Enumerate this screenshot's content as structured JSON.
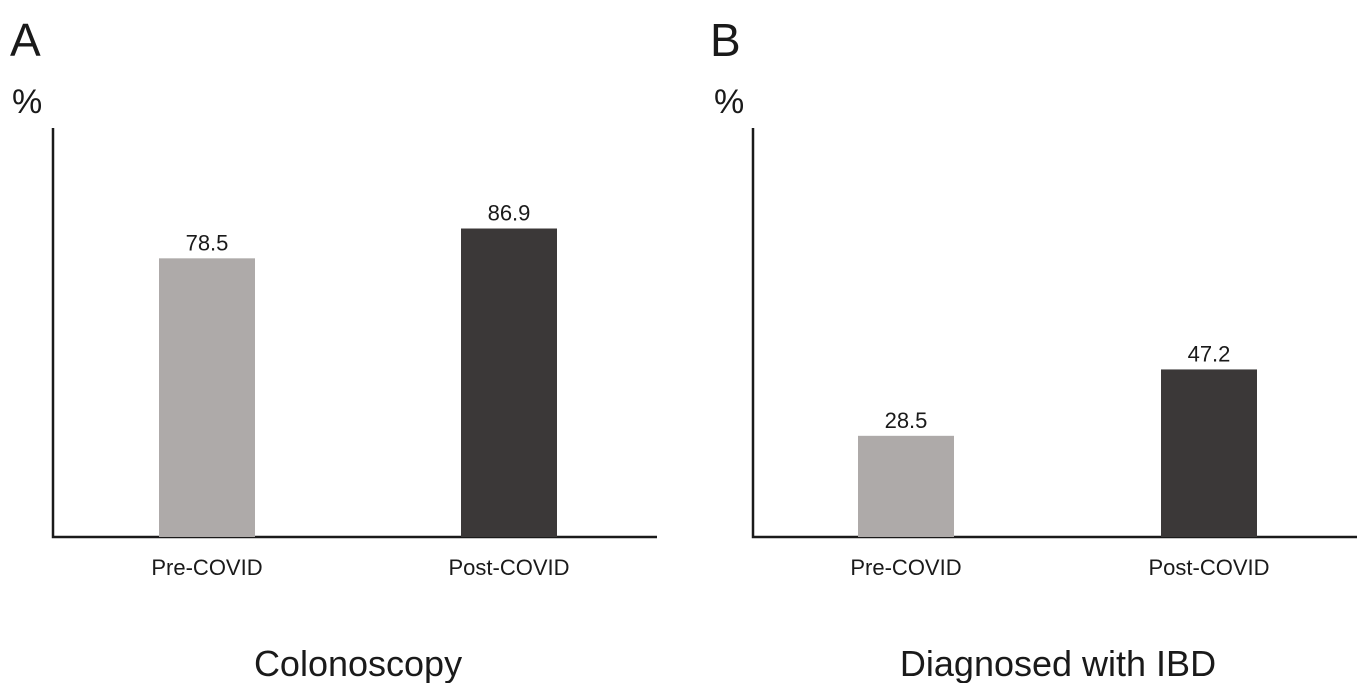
{
  "chart_data": [
    {
      "type": "bar",
      "panel": "A",
      "ylabel": "%",
      "xlabel": "Colonoscopy",
      "categories": [
        "Pre-COVID",
        "Post-COVID"
      ],
      "values": [
        78.5,
        86.9
      ],
      "value_labels": [
        "78.5",
        "86.9"
      ],
      "colors": [
        "#aeaaa9",
        "#3b3838"
      ],
      "ylim": [
        0,
        100
      ],
      "grid": false
    },
    {
      "type": "bar",
      "panel": "B",
      "ylabel": "%",
      "xlabel": "Diagnosed with IBD",
      "categories": [
        "Pre-COVID",
        "Post-COVID"
      ],
      "values": [
        28.5,
        47.2
      ],
      "value_labels": [
        "28.5",
        "47.2"
      ],
      "colors": [
        "#aeaaa9",
        "#3b3838"
      ],
      "ylim": [
        0,
        100
      ],
      "grid": false
    }
  ]
}
